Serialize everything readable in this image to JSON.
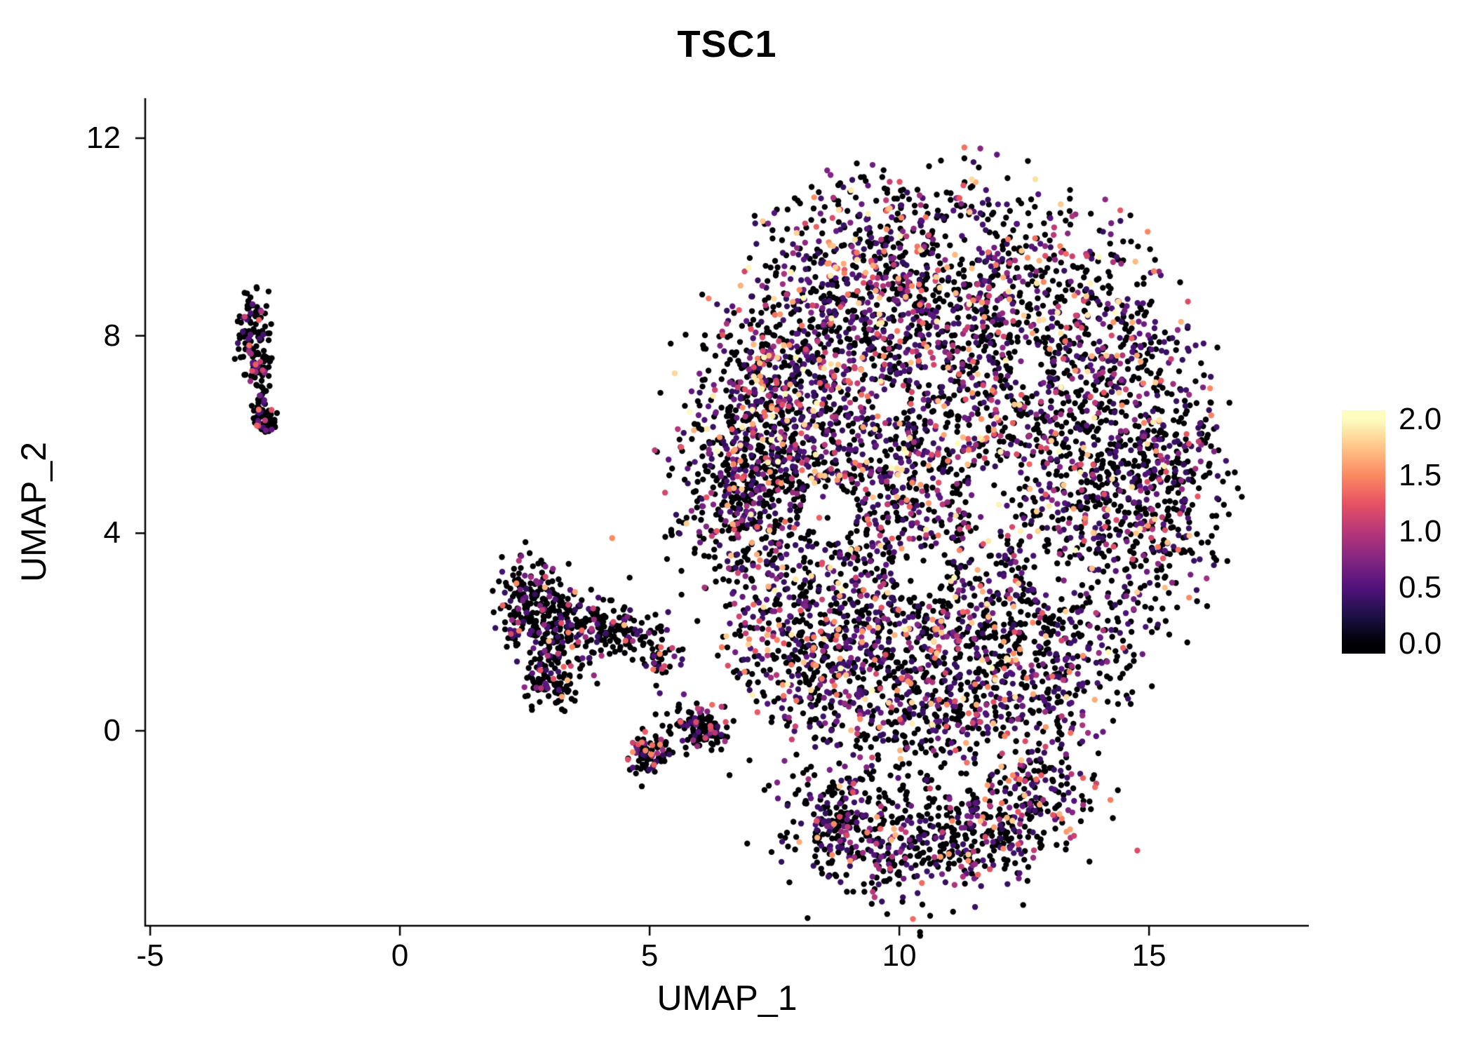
{
  "chart_data": {
    "type": "scatter",
    "title": "TSC1",
    "xlabel": "UMAP_1",
    "ylabel": "UMAP_2",
    "x_ticks": [
      -5,
      0,
      5,
      10,
      15
    ],
    "x_tick_labels": [
      "-5",
      "0",
      "5",
      "10",
      "15"
    ],
    "y_ticks": [
      0,
      4,
      8,
      12
    ],
    "y_tick_labels": [
      "0",
      "4",
      "8",
      "12"
    ],
    "xlim": [
      -5.1,
      18.2
    ],
    "ylim": [
      -3.95,
      12.81
    ],
    "grid": false,
    "legend_position": "right",
    "point_radius_px": 4.2,
    "axis_color": "#000000",
    "background": "#ffffff",
    "colorbar": {
      "min": 0.0,
      "max": 2.0,
      "ticks": [
        2.0,
        1.5,
        1.0,
        0.5,
        0.0
      ],
      "tick_labels": [
        "2.0",
        "1.5",
        "1.0",
        "0.5",
        "0.0"
      ],
      "colormap": "magma",
      "bar_value_range": [
        -0.09,
        2.08
      ],
      "stops": [
        {
          "v": 0.0,
          "c": "#000004"
        },
        {
          "v": 0.25,
          "c": "#1d1147"
        },
        {
          "v": 0.5,
          "c": "#51127c"
        },
        {
          "v": 0.75,
          "c": "#822681"
        },
        {
          "v": 1.0,
          "c": "#b73779"
        },
        {
          "v": 1.25,
          "c": "#e75263"
        },
        {
          "v": 1.5,
          "c": "#fc8961"
        },
        {
          "v": 1.75,
          "c": "#fec488"
        },
        {
          "v": 2.0,
          "c": "#fcfdbf"
        }
      ]
    },
    "seed": 42,
    "clusters": [
      {
        "name": "left-small-cluster",
        "p_zero": 0.84,
        "expr_min": 0.4,
        "expr_max": 1.4,
        "expr_bias": 2.0,
        "blobs": [
          {
            "cx": -2.95,
            "cy": 8.2,
            "sx": 0.16,
            "sy": 0.38,
            "n": 90
          },
          {
            "cx": -2.82,
            "cy": 7.45,
            "sx": 0.13,
            "sy": 0.22,
            "n": 45
          },
          {
            "cx": -2.75,
            "cy": 6.6,
            "sx": 0.1,
            "sy": 0.28,
            "n": 40
          },
          {
            "cx": -2.7,
            "cy": 6.25,
            "sx": 0.12,
            "sy": 0.12,
            "n": 35
          }
        ]
      },
      {
        "name": "lower-left-cluster",
        "p_zero": 0.74,
        "expr_min": 0.35,
        "expr_max": 1.8,
        "expr_bias": 2.2,
        "blobs": [
          {
            "cx": 2.55,
            "cy": 2.6,
            "sx": 0.3,
            "sy": 0.45,
            "n": 170
          },
          {
            "cx": 3.1,
            "cy": 1.7,
            "sx": 0.35,
            "sy": 0.55,
            "n": 150
          },
          {
            "cx": 3.75,
            "cy": 2.2,
            "sx": 0.45,
            "sy": 0.3,
            "n": 110
          },
          {
            "cx": 3.0,
            "cy": 0.9,
            "sx": 0.25,
            "sy": 0.28,
            "n": 60
          }
        ]
      },
      {
        "name": "small-trail-cluster",
        "p_zero": 0.72,
        "expr_min": 0.35,
        "expr_max": 1.6,
        "expr_bias": 2.2,
        "blobs": [
          {
            "cx": 4.55,
            "cy": 2.0,
            "sx": 0.35,
            "sy": 0.22,
            "n": 60
          },
          {
            "cx": 5.1,
            "cy": 1.5,
            "sx": 0.25,
            "sy": 0.25,
            "n": 45
          },
          {
            "cx": 4.95,
            "cy": -0.45,
            "sx": 0.18,
            "sy": 0.22,
            "n": 85
          },
          {
            "cx": 5.85,
            "cy": 0.15,
            "sx": 0.3,
            "sy": 0.22,
            "n": 85
          },
          {
            "cx": 6.25,
            "cy": -0.05,
            "sx": 0.15,
            "sy": 0.12,
            "n": 40
          }
        ]
      },
      {
        "name": "main-cluster",
        "p_zero": 0.6,
        "expr_min": 0.35,
        "expr_max": 2.0,
        "expr_bias": 2.6,
        "clip_ellipse": {
          "cx": 10.9,
          "cy": 5.4,
          "rx": 6.0,
          "ry": 6.5
        },
        "holes": [
          {
            "cx": 8.6,
            "cy": 4.4,
            "r": 0.55
          },
          {
            "cx": 10.4,
            "cy": 3.2,
            "r": 0.5
          },
          {
            "cx": 11.9,
            "cy": 4.7,
            "r": 0.55
          },
          {
            "cx": 11.2,
            "cy": 9.9,
            "r": 0.5
          },
          {
            "cx": 13.2,
            "cy": 2.9,
            "r": 0.45
          },
          {
            "cx": 9.8,
            "cy": 6.7,
            "r": 0.35
          },
          {
            "cx": 12.6,
            "cy": 7.4,
            "r": 0.4
          }
        ],
        "blobs": [
          {
            "cx": 9.0,
            "cy": 8.5,
            "sx": 1.15,
            "sy": 1.35,
            "n": 680,
            "p_zero": 0.47
          },
          {
            "cx": 11.4,
            "cy": 9.2,
            "sx": 1.5,
            "sy": 1.15,
            "n": 600,
            "p_zero": 0.52
          },
          {
            "cx": 7.5,
            "cy": 5.5,
            "sx": 0.95,
            "sy": 1.2,
            "n": 480
          },
          {
            "cx": 9.6,
            "cy": 5.0,
            "sx": 1.3,
            "sy": 1.5,
            "n": 600,
            "p_zero": 0.5
          },
          {
            "cx": 12.0,
            "cy": 6.0,
            "sx": 1.5,
            "sy": 1.5,
            "n": 550
          },
          {
            "cx": 14.2,
            "cy": 4.6,
            "sx": 1.05,
            "sy": 1.6,
            "n": 550
          },
          {
            "cx": 10.0,
            "cy": 2.0,
            "sx": 1.3,
            "sy": 1.0,
            "n": 500
          },
          {
            "cx": 12.5,
            "cy": 1.6,
            "sx": 1.15,
            "sy": 0.9,
            "n": 400
          },
          {
            "cx": 8.1,
            "cy": 1.6,
            "sx": 0.85,
            "sy": 1.0,
            "n": 350
          },
          {
            "cx": 13.9,
            "cy": 8.0,
            "sx": 1.0,
            "sy": 1.0,
            "n": 300
          },
          {
            "cx": 6.8,
            "cy": 4.9,
            "sx": 0.55,
            "sy": 0.95,
            "n": 260
          },
          {
            "cx": 10.8,
            "cy": 0.3,
            "sx": 1.5,
            "sy": 0.5,
            "n": 300
          },
          {
            "cx": 15.3,
            "cy": 5.2,
            "sx": 0.65,
            "sy": 1.2,
            "n": 240
          },
          {
            "cx": 7.3,
            "cy": 7.1,
            "sx": 0.5,
            "sy": 0.7,
            "n": 150
          }
        ]
      },
      {
        "name": "bottom-lobe",
        "p_zero": 0.62,
        "expr_min": 0.35,
        "expr_max": 1.8,
        "expr_bias": 2.4,
        "blobs": [
          {
            "cx": 9.0,
            "cy": -1.8,
            "sx": 0.75,
            "sy": 0.65,
            "n": 250
          },
          {
            "cx": 10.5,
            "cy": -2.3,
            "sx": 0.95,
            "sy": 0.55,
            "n": 250
          },
          {
            "cx": 12.0,
            "cy": -1.8,
            "sx": 0.85,
            "sy": 0.55,
            "n": 200
          },
          {
            "cx": 12.9,
            "cy": -1.1,
            "sx": 0.5,
            "sy": 0.45,
            "n": 110
          }
        ]
      },
      {
        "name": "scattered-outliers",
        "points": [
          {
            "x": 4.25,
            "y": 3.9,
            "v": 1.5
          },
          {
            "x": 4.6,
            "y": 3.1,
            "v": 0.0
          },
          {
            "x": 6.6,
            "y": -0.9,
            "v": 0.0
          },
          {
            "x": 7.3,
            "y": -1.2,
            "v": 0.0
          },
          {
            "x": 13.9,
            "y": -0.9,
            "v": 0.0
          },
          {
            "x": 15.2,
            "y": 9.3,
            "v": 0.8
          },
          {
            "x": 16.1,
            "y": 7.2,
            "v": 0.0
          },
          {
            "x": 5.9,
            "y": 3.6,
            "v": 0.0
          },
          {
            "x": 6.1,
            "y": 2.9,
            "v": 0.9
          },
          {
            "x": 8.3,
            "y": -0.9,
            "v": 0.0
          },
          {
            "x": 12.6,
            "y": -0.6,
            "v": 0.6
          },
          {
            "x": 7.0,
            "y": -0.6,
            "v": 0.0
          }
        ]
      }
    ]
  }
}
